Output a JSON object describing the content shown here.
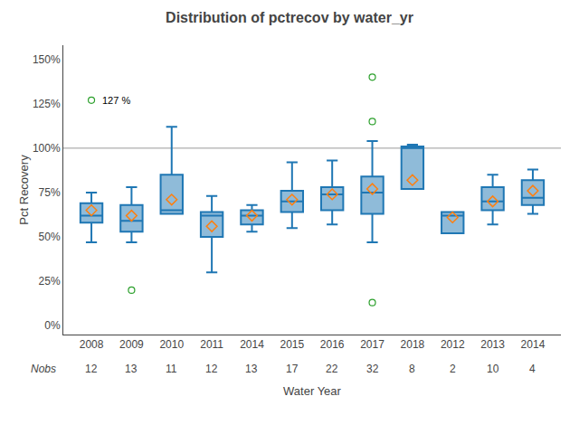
{
  "chart_data": {
    "type": "box",
    "title": "Distribution of pctrecov by water_yr",
    "xlabel": "Water Year",
    "ylabel": "Pct Recovery",
    "categories": [
      "2008",
      "2009",
      "2010",
      "2011",
      "2014",
      "2015",
      "2016",
      "2017",
      "2018",
      "2012",
      "2013",
      "2014"
    ],
    "boxes": [
      {
        "q1": 58,
        "median": 62,
        "q3": 69,
        "whislo": 47,
        "whishi": 75,
        "mean": 65,
        "fliers": [
          127
        ]
      },
      {
        "q1": 53,
        "median": 59,
        "q3": 68,
        "whislo": 47,
        "whishi": 78,
        "mean": 62,
        "fliers": [
          20
        ]
      },
      {
        "q1": 63,
        "median": 65,
        "q3": 85,
        "whislo": 63,
        "whishi": 112,
        "mean": 71,
        "fliers": []
      },
      {
        "q1": 50,
        "median": 62,
        "q3": 64,
        "whislo": 30,
        "whishi": 73,
        "mean": 56,
        "fliers": []
      },
      {
        "q1": 57,
        "median": 62,
        "q3": 65,
        "whislo": 53,
        "whishi": 68,
        "mean": 62,
        "fliers": []
      },
      {
        "q1": 64,
        "median": 70,
        "q3": 76,
        "whislo": 55,
        "whishi": 92,
        "mean": 71,
        "fliers": []
      },
      {
        "q1": 65,
        "median": 74,
        "q3": 78,
        "whislo": 57,
        "whishi": 93,
        "mean": 74,
        "fliers": []
      },
      {
        "q1": 63,
        "median": 75,
        "q3": 84,
        "whislo": 47,
        "whishi": 104,
        "mean": 77,
        "fliers": [
          140,
          115,
          13
        ]
      },
      {
        "q1": 77,
        "median": 100,
        "q3": 101,
        "whislo": 77,
        "whishi": 102,
        "mean": 82,
        "fliers": []
      },
      {
        "q1": 52,
        "median": 62,
        "q3": 64,
        "whislo": 52,
        "whishi": 64,
        "mean": 61,
        "fliers": []
      },
      {
        "q1": 65,
        "median": 70,
        "q3": 78,
        "whislo": 57,
        "whishi": 85,
        "mean": 70,
        "fliers": []
      },
      {
        "q1": 68,
        "median": 72,
        "q3": 82,
        "whislo": 63,
        "whishi": 88,
        "mean": 76,
        "fliers": []
      }
    ],
    "nobs": {
      "label": "Nobs",
      "values": [
        12,
        13,
        11,
        12,
        13,
        17,
        22,
        32,
        8,
        2,
        10,
        4
      ]
    },
    "annotations": [
      {
        "text": "127 %",
        "category": "2008",
        "y": 127
      }
    ],
    "reference_line": 100,
    "ylim": [
      -5,
      158
    ],
    "yticks": [
      {
        "value": 0,
        "label": "0%"
      },
      {
        "value": 25,
        "label": "25%"
      },
      {
        "value": 50,
        "label": "50%"
      },
      {
        "value": 75,
        "label": "75%"
      },
      {
        "value": 100,
        "label": "100%"
      },
      {
        "value": 125,
        "label": "125%"
      },
      {
        "value": 150,
        "label": "150%"
      }
    ],
    "grid": false
  }
}
